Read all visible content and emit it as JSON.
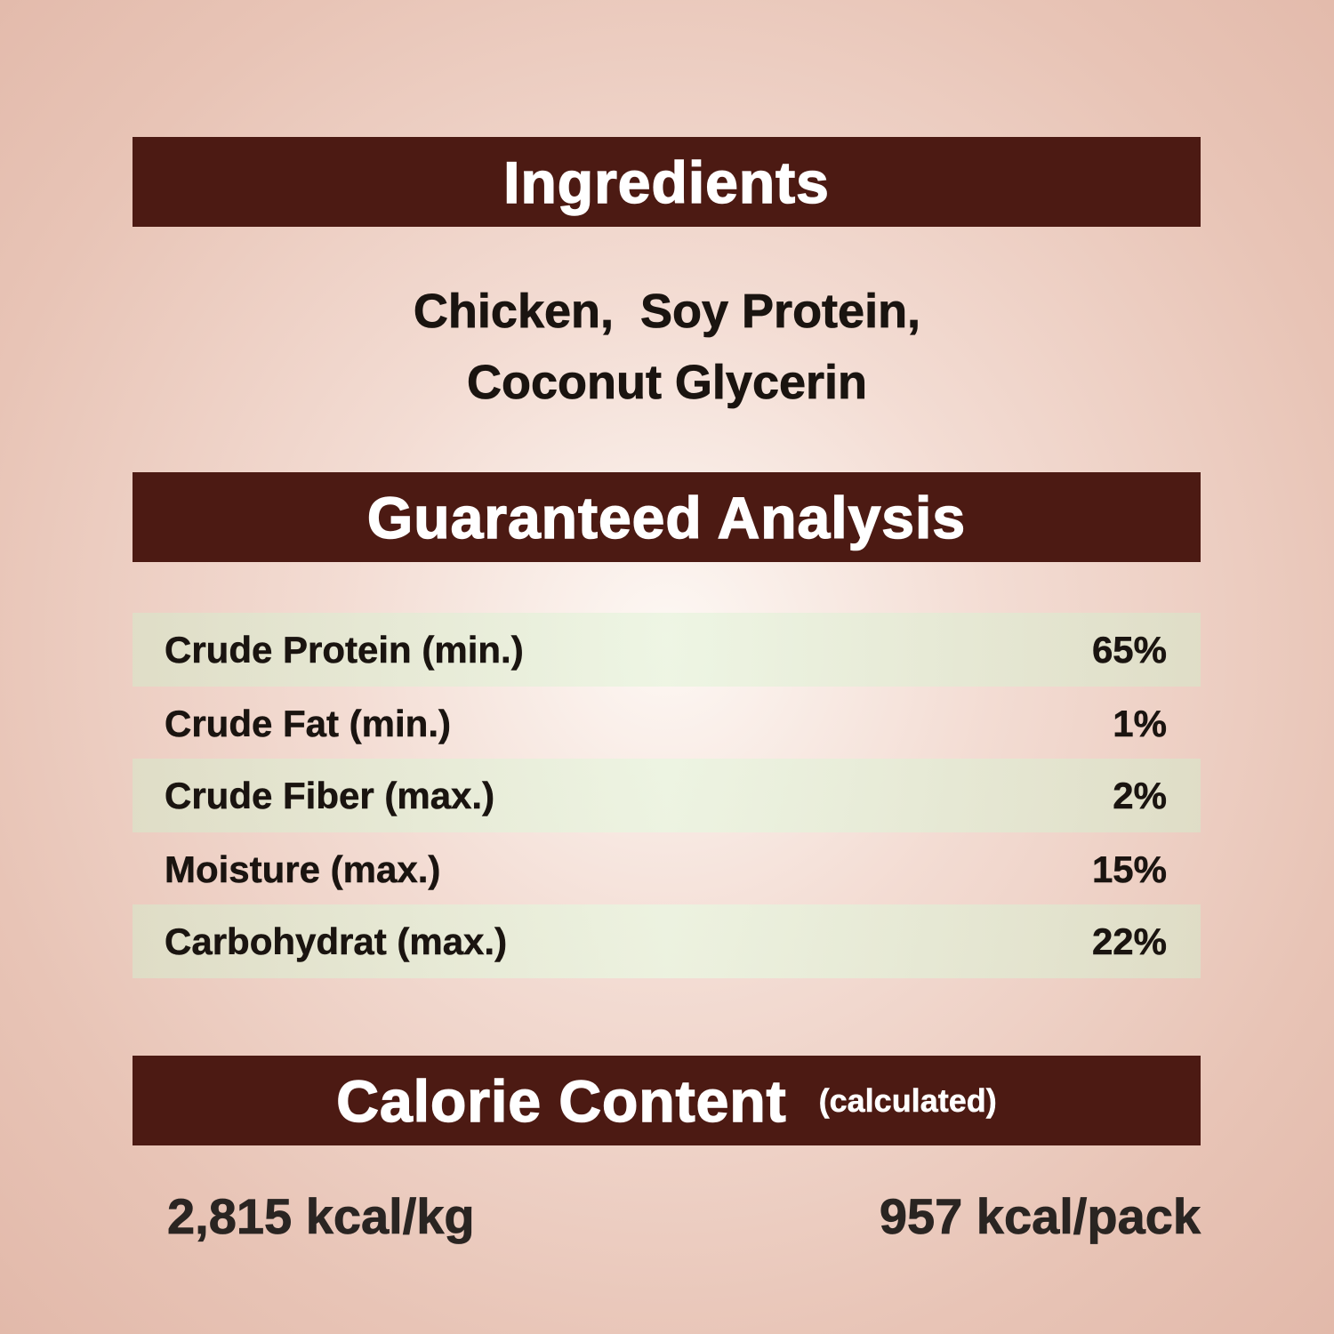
{
  "ingredients": {
    "title": "Ingredients",
    "line1": "Chicken,  Soy Protein,",
    "line2": "Coconut Glycerin"
  },
  "analysis": {
    "title": "Guaranteed Analysis",
    "rows": [
      {
        "label": "Crude Protein (min.)",
        "value": "65%"
      },
      {
        "label": "Crude Fat (min.)",
        "value": "1%"
      },
      {
        "label": "Crude Fiber (max.)",
        "value": "2%"
      },
      {
        "label": "Moisture (max.)",
        "value": "15%"
      },
      {
        "label": "Carbohydrat (max.)",
        "value": "22%"
      }
    ]
  },
  "calorie": {
    "title": "Calorie Content",
    "subtitle": "(calculated)",
    "per_kg": "2,815 kcal/kg",
    "per_pack": "957 kcal/pack"
  },
  "colors": {
    "header_bar": "#4c1a13"
  }
}
